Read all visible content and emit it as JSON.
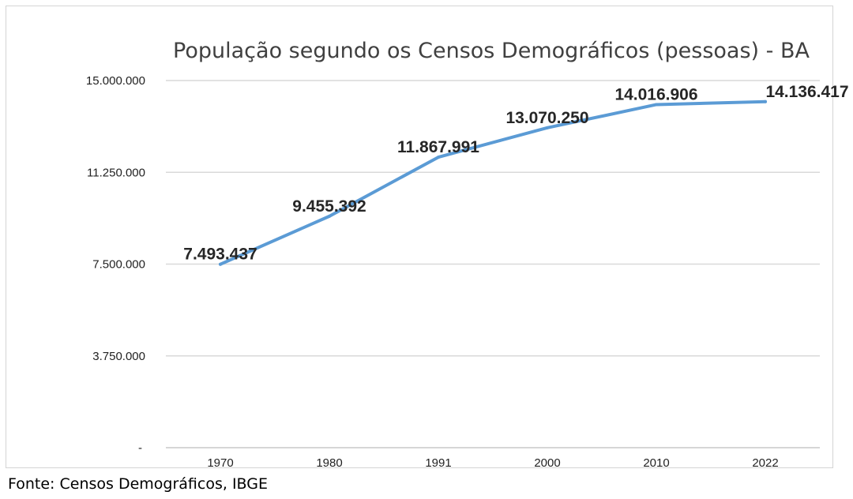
{
  "chart_data": {
    "type": "line",
    "title": "População segundo os Censos Demográficos (pessoas) - BA",
    "categories": [
      "1970",
      "1980",
      "1991",
      "2000",
      "2010",
      "2022"
    ],
    "series": [
      {
        "values": [
          7493437,
          9455392,
          11867991,
          13070250,
          14016906,
          14136417
        ],
        "data_labels": [
          "7.493.437",
          "9.455.392",
          "11.867.991",
          "13.070.250",
          "14.016.906",
          "14.136.417"
        ],
        "color": "#5b9bd5"
      }
    ],
    "yticks": [
      0,
      3750000,
      7500000,
      11250000,
      15000000
    ],
    "ytick_labels": [
      "-",
      "3.750.000",
      "7.500.000",
      "11.250.000",
      "15.000.000"
    ],
    "ylim": [
      0,
      15000000
    ],
    "xlabel": "",
    "ylabel": "",
    "grid": true,
    "legend": "none"
  },
  "source_note": "Fonte: Censos Demográficos, IBGE"
}
